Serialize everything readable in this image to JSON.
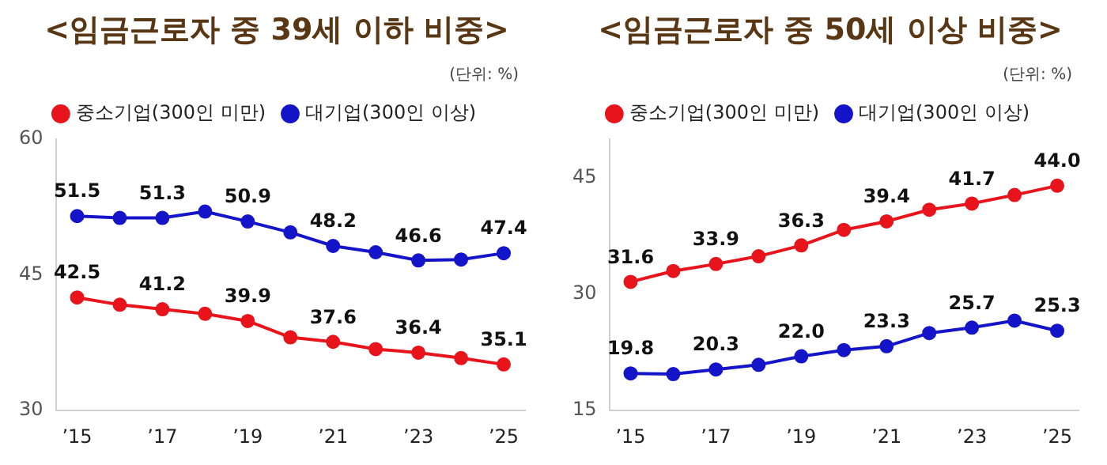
{
  "chart_data": [
    {
      "type": "line",
      "title": "<임금근로자 중 39세 이하 비중>",
      "annotations": [
        "(단위: %)"
      ],
      "categories": [
        "’15",
        null,
        "’17",
        null,
        "’19",
        null,
        "’21",
        null,
        "’23",
        null,
        "’25"
      ],
      "series": [
        {
          "name": "중소기업(300인 미만)",
          "color": "#e8141c",
          "values": [
            42.5,
            41.7,
            41.2,
            40.7,
            39.9,
            38.1,
            37.6,
            36.8,
            36.4,
            35.8,
            35.1
          ],
          "value_labels": [
            "42.5",
            null,
            "41.2",
            null,
            "39.9",
            null,
            "37.6",
            null,
            "36.4",
            null,
            "35.1"
          ]
        },
        {
          "name": "대기업(300인 이상)",
          "color": "#1414c8",
          "values": [
            51.5,
            51.3,
            51.3,
            52.0,
            50.9,
            49.7,
            48.2,
            47.5,
            46.6,
            46.7,
            47.4
          ],
          "value_labels": [
            "51.5",
            null,
            "51.3",
            null,
            "50.9",
            null,
            "48.2",
            null,
            "46.6",
            null,
            "47.4"
          ]
        }
      ],
      "ylim": [
        30,
        60
      ],
      "yticks": [
        30,
        45,
        60
      ],
      "grid": false,
      "legend": "top",
      "marker": "circle",
      "line_style": "solid"
    },
    {
      "type": "line",
      "title": "<임금근로자 중 50세 이상 비중>",
      "annotations": [
        "(단위: %)"
      ],
      "categories": [
        "’15",
        null,
        "’17",
        null,
        "’19",
        null,
        "’21",
        null,
        "’23",
        null,
        "’25"
      ],
      "series": [
        {
          "name": "중소기업(300인 미만)",
          "color": "#e8141c",
          "values": [
            31.6,
            33.0,
            33.9,
            34.9,
            36.3,
            38.3,
            39.4,
            40.9,
            41.7,
            42.8,
            44.0
          ],
          "value_labels": [
            "31.6",
            null,
            "33.9",
            null,
            "36.3",
            null,
            "39.4",
            null,
            "41.7",
            null,
            "44.0"
          ]
        },
        {
          "name": "대기업(300인 이상)",
          "color": "#1414c8",
          "values": [
            19.8,
            19.7,
            20.3,
            20.9,
            22.0,
            22.8,
            23.3,
            25.0,
            25.7,
            26.6,
            25.3
          ],
          "value_labels": [
            "19.8",
            null,
            "20.3",
            null,
            "22.0",
            null,
            "23.3",
            null,
            "25.7",
            null,
            "25.3"
          ]
        }
      ],
      "ylim": [
        15,
        50
      ],
      "yticks": [
        15,
        30,
        45
      ],
      "grid": false,
      "legend": "top",
      "marker": "circle",
      "line_style": "solid"
    }
  ]
}
